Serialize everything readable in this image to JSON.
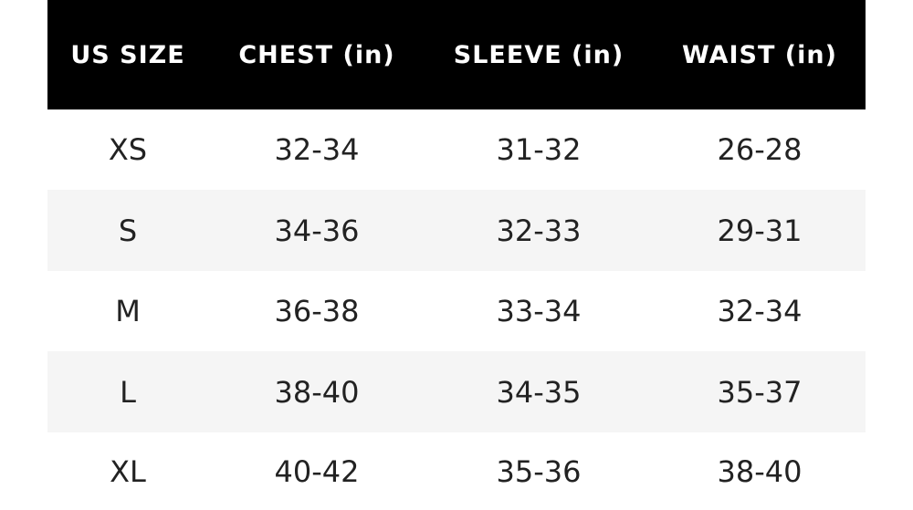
{
  "table": {
    "header": [
      "US SIZE",
      "CHEST (in)",
      "SLEEVE (in)",
      "WAIST (in)"
    ],
    "rows": [
      [
        "XS",
        "32-34",
        "31-32",
        "26-28"
      ],
      [
        "S",
        "34-36",
        "32-33",
        "29-31"
      ],
      [
        "M",
        "36-38",
        "33-34",
        "32-34"
      ],
      [
        "L",
        "38-40",
        "34-35",
        "35-37"
      ],
      [
        "XL",
        "40-42",
        "35-36",
        "38-40"
      ]
    ]
  }
}
